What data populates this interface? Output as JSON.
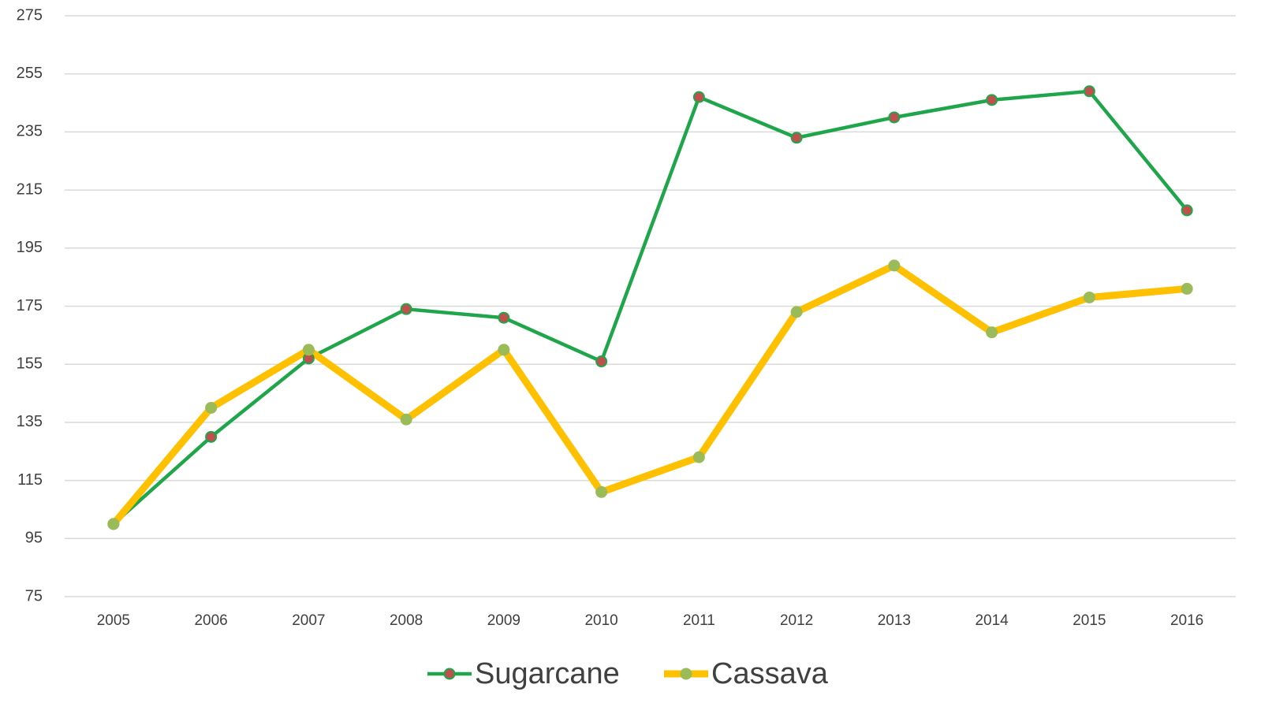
{
  "chart_data": {
    "type": "line",
    "categories": [
      "2005",
      "2006",
      "2007",
      "2008",
      "2009",
      "2010",
      "2011",
      "2012",
      "2013",
      "2014",
      "2015",
      "2016"
    ],
    "series": [
      {
        "name": "Sugarcane",
        "color": "#1fa64a",
        "marker_color": "#c0504d",
        "values": [
          100,
          130,
          157,
          174,
          171,
          156,
          247,
          233,
          240,
          246,
          249,
          208
        ]
      },
      {
        "name": "Cassava",
        "color": "#ffc000",
        "marker_color": "#9bbb59",
        "values": [
          100,
          140,
          160,
          136,
          160,
          111,
          123,
          173,
          189,
          166,
          178,
          181
        ]
      }
    ],
    "ylim": [
      75,
      275
    ],
    "yticks": [
      75,
      95,
      115,
      135,
      155,
      175,
      195,
      215,
      235,
      255,
      275
    ],
    "grid": true,
    "legend": "bottom"
  }
}
